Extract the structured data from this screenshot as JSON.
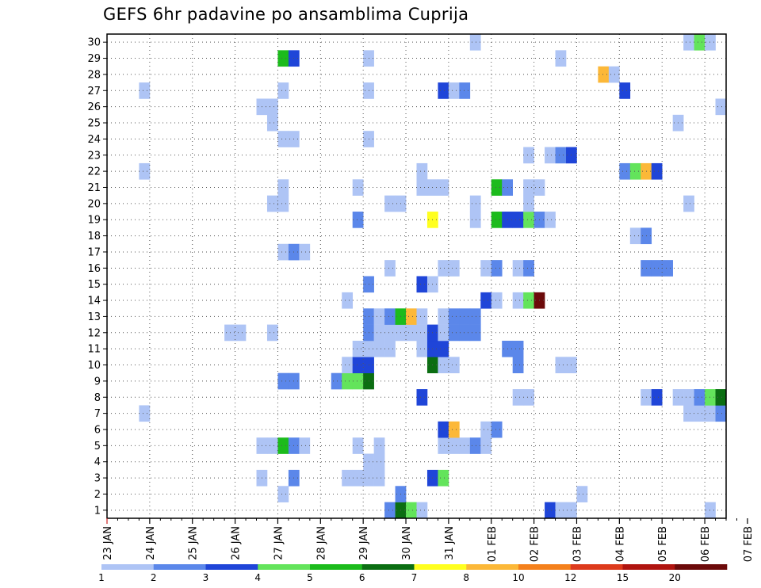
{
  "title": "GEFS 6hr padavine po ansamblima Cuprija",
  "chart_data": {
    "type": "heatmap",
    "title": "GEFS 6hr padavine po ansamblima Cuprija",
    "xlabel": "",
    "ylabel": "",
    "x_unit": "6-hour step from 23 JAN 00Z",
    "xlim": [
      0,
      58
    ],
    "ylim": [
      0.5,
      30.5
    ],
    "grid": true,
    "x_tick_labels": [
      "23 JAN",
      "24 JAN",
      "25 JAN",
      "26 JAN",
      "27 JAN",
      "28 JAN",
      "29 JAN",
      "30 JAN",
      "31 JAN",
      "01 FEB",
      "02 FEB",
      "03 FEB",
      "04 FEB",
      "05 FEB",
      "06 FEB",
      "07 FEB"
    ],
    "y_tick_labels": [
      1,
      2,
      3,
      4,
      5,
      6,
      7,
      8,
      9,
      10,
      11,
      12,
      13,
      14,
      15,
      16,
      17,
      18,
      19,
      20,
      21,
      22,
      23,
      24,
      25,
      26,
      27,
      28,
      29,
      30
    ],
    "colorbar": {
      "labels": [
        "1",
        "2",
        "3",
        "4",
        "5",
        "6",
        "7",
        "8",
        "10",
        "12",
        "15",
        "20"
      ],
      "colors": [
        "#aec4f5",
        "#5b87ea",
        "#1f45d8",
        "#63e45b",
        "#1cbb1c",
        "#0b6e12",
        "#ffff1f",
        "#fcb838",
        "#f4801c",
        "#dd3a1c",
        "#b0140f",
        "#6c0a0a"
      ]
    },
    "cells": [
      {
        "m": 1,
        "x": 27,
        "v": 2
      },
      {
        "m": 1,
        "x": 28,
        "v": 6
      },
      {
        "m": 1,
        "x": 29,
        "v": 4
      },
      {
        "m": 1,
        "x": 30,
        "v": 1
      },
      {
        "m": 1,
        "x": 42,
        "v": 3
      },
      {
        "m": 1,
        "x": 43,
        "v": 1
      },
      {
        "m": 1,
        "x": 44,
        "v": 1
      },
      {
        "m": 1,
        "x": 57,
        "v": 1
      },
      {
        "m": 2,
        "x": 17,
        "v": 1
      },
      {
        "m": 2,
        "x": 28,
        "v": 2
      },
      {
        "m": 2,
        "x": 45,
        "v": 1
      },
      {
        "m": 3,
        "x": 15,
        "v": 1
      },
      {
        "m": 3,
        "x": 18,
        "v": 2
      },
      {
        "m": 3,
        "x": 23,
        "v": 1
      },
      {
        "m": 3,
        "x": 24,
        "v": 1
      },
      {
        "m": 3,
        "x": 25,
        "v": 1
      },
      {
        "m": 3,
        "x": 26,
        "v": 1
      },
      {
        "m": 3,
        "x": 31,
        "v": 3
      },
      {
        "m": 3,
        "x": 32,
        "v": 4
      },
      {
        "m": 4,
        "x": 25,
        "v": 1
      },
      {
        "m": 4,
        "x": 26,
        "v": 1
      },
      {
        "m": 5,
        "x": 15,
        "v": 1
      },
      {
        "m": 5,
        "x": 16,
        "v": 1
      },
      {
        "m": 5,
        "x": 17,
        "v": 5
      },
      {
        "m": 5,
        "x": 18,
        "v": 2
      },
      {
        "m": 5,
        "x": 19,
        "v": 1
      },
      {
        "m": 5,
        "x": 24,
        "v": 1
      },
      {
        "m": 5,
        "x": 26,
        "v": 1
      },
      {
        "m": 5,
        "x": 32,
        "v": 1
      },
      {
        "m": 5,
        "x": 33,
        "v": 1
      },
      {
        "m": 5,
        "x": 34,
        "v": 1
      },
      {
        "m": 5,
        "x": 35,
        "v": 2
      },
      {
        "m": 5,
        "x": 36,
        "v": 1
      },
      {
        "m": 6,
        "x": 32,
        "v": 3
      },
      {
        "m": 6,
        "x": 33,
        "v": 8
      },
      {
        "m": 6,
        "x": 36,
        "v": 1
      },
      {
        "m": 6,
        "x": 37,
        "v": 2
      },
      {
        "m": 7,
        "x": 4,
        "v": 1
      },
      {
        "m": 7,
        "x": 55,
        "v": 1
      },
      {
        "m": 7,
        "x": 56,
        "v": 1
      },
      {
        "m": 7,
        "x": 57,
        "v": 1
      },
      {
        "m": 7,
        "x": 58,
        "v": 2
      },
      {
        "m": 8,
        "x": 30,
        "v": 3
      },
      {
        "m": 8,
        "x": 39,
        "v": 1
      },
      {
        "m": 8,
        "x": 40,
        "v": 1
      },
      {
        "m": 8,
        "x": 51,
        "v": 1
      },
      {
        "m": 8,
        "x": 52,
        "v": 3
      },
      {
        "m": 8,
        "x": 54,
        "v": 1
      },
      {
        "m": 8,
        "x": 55,
        "v": 1
      },
      {
        "m": 8,
        "x": 56,
        "v": 2
      },
      {
        "m": 8,
        "x": 57,
        "v": 4
      },
      {
        "m": 8,
        "x": 58,
        "v": 6
      },
      {
        "m": 9,
        "x": 17,
        "v": 2
      },
      {
        "m": 9,
        "x": 18,
        "v": 2
      },
      {
        "m": 9,
        "x": 22,
        "v": 2
      },
      {
        "m": 9,
        "x": 23,
        "v": 4
      },
      {
        "m": 9,
        "x": 24,
        "v": 4
      },
      {
        "m": 9,
        "x": 25,
        "v": 6
      },
      {
        "m": 10,
        "x": 23,
        "v": 1
      },
      {
        "m": 10,
        "x": 24,
        "v": 3
      },
      {
        "m": 10,
        "x": 25,
        "v": 3
      },
      {
        "m": 10,
        "x": 31,
        "v": 6
      },
      {
        "m": 10,
        "x": 32,
        "v": 1
      },
      {
        "m": 10,
        "x": 33,
        "v": 1
      },
      {
        "m": 10,
        "x": 39,
        "v": 2
      },
      {
        "m": 10,
        "x": 43,
        "v": 1
      },
      {
        "m": 10,
        "x": 44,
        "v": 1
      },
      {
        "m": 11,
        "x": 24,
        "v": 1
      },
      {
        "m": 11,
        "x": 25,
        "v": 1
      },
      {
        "m": 11,
        "x": 26,
        "v": 1
      },
      {
        "m": 11,
        "x": 27,
        "v": 1
      },
      {
        "m": 11,
        "x": 30,
        "v": 1
      },
      {
        "m": 11,
        "x": 31,
        "v": 3
      },
      {
        "m": 11,
        "x": 32,
        "v": 3
      },
      {
        "m": 11,
        "x": 38,
        "v": 2
      },
      {
        "m": 11,
        "x": 39,
        "v": 2
      },
      {
        "m": 12,
        "x": 12,
        "v": 1
      },
      {
        "m": 12,
        "x": 13,
        "v": 1
      },
      {
        "m": 12,
        "x": 16,
        "v": 1
      },
      {
        "m": 12,
        "x": 25,
        "v": 2
      },
      {
        "m": 12,
        "x": 26,
        "v": 1
      },
      {
        "m": 12,
        "x": 27,
        "v": 1
      },
      {
        "m": 12,
        "x": 28,
        "v": 1
      },
      {
        "m": 12,
        "x": 29,
        "v": 1
      },
      {
        "m": 12,
        "x": 30,
        "v": 1
      },
      {
        "m": 12,
        "x": 31,
        "v": 3
      },
      {
        "m": 12,
        "x": 32,
        "v": 1
      },
      {
        "m": 12,
        "x": 33,
        "v": 2
      },
      {
        "m": 12,
        "x": 34,
        "v": 2
      },
      {
        "m": 12,
        "x": 35,
        "v": 2
      },
      {
        "m": 13,
        "x": 25,
        "v": 2
      },
      {
        "m": 13,
        "x": 26,
        "v": 1
      },
      {
        "m": 13,
        "x": 27,
        "v": 2
      },
      {
        "m": 13,
        "x": 28,
        "v": 5
      },
      {
        "m": 13,
        "x": 29,
        "v": 8
      },
      {
        "m": 13,
        "x": 30,
        "v": 1
      },
      {
        "m": 13,
        "x": 32,
        "v": 1
      },
      {
        "m": 13,
        "x": 33,
        "v": 2
      },
      {
        "m": 13,
        "x": 34,
        "v": 2
      },
      {
        "m": 13,
        "x": 35,
        "v": 2
      },
      {
        "m": 14,
        "x": 23,
        "v": 1
      },
      {
        "m": 14,
        "x": 36,
        "v": 3
      },
      {
        "m": 14,
        "x": 37,
        "v": 1
      },
      {
        "m": 14,
        "x": 39,
        "v": 1
      },
      {
        "m": 14,
        "x": 40,
        "v": 4
      },
      {
        "m": 14,
        "x": 41,
        "v": 12
      },
      {
        "m": 15,
        "x": 25,
        "v": 2
      },
      {
        "m": 15,
        "x": 30,
        "v": 3
      },
      {
        "m": 15,
        "x": 31,
        "v": 1
      },
      {
        "m": 16,
        "x": 27,
        "v": 1
      },
      {
        "m": 16,
        "x": 32,
        "v": 1
      },
      {
        "m": 16,
        "x": 33,
        "v": 1
      },
      {
        "m": 16,
        "x": 36,
        "v": 1
      },
      {
        "m": 16,
        "x": 37,
        "v": 2
      },
      {
        "m": 16,
        "x": 39,
        "v": 1
      },
      {
        "m": 16,
        "x": 40,
        "v": 2
      },
      {
        "m": 16,
        "x": 51,
        "v": 2
      },
      {
        "m": 16,
        "x": 52,
        "v": 2
      },
      {
        "m": 16,
        "x": 53,
        "v": 2
      },
      {
        "m": 17,
        "x": 17,
        "v": 1
      },
      {
        "m": 17,
        "x": 18,
        "v": 2
      },
      {
        "m": 17,
        "x": 19,
        "v": 1
      },
      {
        "m": 18,
        "x": 50,
        "v": 1
      },
      {
        "m": 18,
        "x": 51,
        "v": 2
      },
      {
        "m": 19,
        "x": 24,
        "v": 2
      },
      {
        "m": 19,
        "x": 31,
        "v": 7
      },
      {
        "m": 19,
        "x": 35,
        "v": 1
      },
      {
        "m": 19,
        "x": 37,
        "v": 5
      },
      {
        "m": 19,
        "x": 38,
        "v": 3
      },
      {
        "m": 19,
        "x": 39,
        "v": 3
      },
      {
        "m": 19,
        "x": 40,
        "v": 4
      },
      {
        "m": 19,
        "x": 41,
        "v": 2
      },
      {
        "m": 19,
        "x": 42,
        "v": 1
      },
      {
        "m": 20,
        "x": 16,
        "v": 1
      },
      {
        "m": 20,
        "x": 17,
        "v": 1
      },
      {
        "m": 20,
        "x": 27,
        "v": 1
      },
      {
        "m": 20,
        "x": 28,
        "v": 1
      },
      {
        "m": 20,
        "x": 35,
        "v": 1
      },
      {
        "m": 20,
        "x": 40,
        "v": 1
      },
      {
        "m": 20,
        "x": 55,
        "v": 1
      },
      {
        "m": 21,
        "x": 17,
        "v": 1
      },
      {
        "m": 21,
        "x": 24,
        "v": 1
      },
      {
        "m": 21,
        "x": 30,
        "v": 1
      },
      {
        "m": 21,
        "x": 31,
        "v": 1
      },
      {
        "m": 21,
        "x": 32,
        "v": 1
      },
      {
        "m": 21,
        "x": 37,
        "v": 5
      },
      {
        "m": 21,
        "x": 38,
        "v": 2
      },
      {
        "m": 21,
        "x": 40,
        "v": 1
      },
      {
        "m": 21,
        "x": 41,
        "v": 1
      },
      {
        "m": 22,
        "x": 4,
        "v": 1
      },
      {
        "m": 22,
        "x": 30,
        "v": 1
      },
      {
        "m": 22,
        "x": 49,
        "v": 2
      },
      {
        "m": 22,
        "x": 50,
        "v": 4
      },
      {
        "m": 22,
        "x": 51,
        "v": 8
      },
      {
        "m": 22,
        "x": 52,
        "v": 3
      },
      {
        "m": 23,
        "x": 40,
        "v": 1
      },
      {
        "m": 23,
        "x": 42,
        "v": 1
      },
      {
        "m": 23,
        "x": 43,
        "v": 2
      },
      {
        "m": 23,
        "x": 44,
        "v": 3
      },
      {
        "m": 24,
        "x": 17,
        "v": 1
      },
      {
        "m": 24,
        "x": 18,
        "v": 1
      },
      {
        "m": 24,
        "x": 25,
        "v": 1
      },
      {
        "m": 25,
        "x": 16,
        "v": 1
      },
      {
        "m": 25,
        "x": 54,
        "v": 1
      },
      {
        "m": 26,
        "x": 15,
        "v": 1
      },
      {
        "m": 26,
        "x": 16,
        "v": 1
      },
      {
        "m": 26,
        "x": 58,
        "v": 1
      },
      {
        "m": 27,
        "x": 4,
        "v": 1
      },
      {
        "m": 27,
        "x": 17,
        "v": 1
      },
      {
        "m": 27,
        "x": 25,
        "v": 1
      },
      {
        "m": 27,
        "x": 32,
        "v": 3
      },
      {
        "m": 27,
        "x": 33,
        "v": 1
      },
      {
        "m": 27,
        "x": 34,
        "v": 2
      },
      {
        "m": 27,
        "x": 49,
        "v": 3
      },
      {
        "m": 28,
        "x": 47,
        "v": 8
      },
      {
        "m": 28,
        "x": 48,
        "v": 1
      },
      {
        "m": 29,
        "x": 17,
        "v": 5
      },
      {
        "m": 29,
        "x": 18,
        "v": 3
      },
      {
        "m": 29,
        "x": 25,
        "v": 1
      },
      {
        "m": 29,
        "x": 43,
        "v": 1
      },
      {
        "m": 30,
        "x": 35,
        "v": 1
      },
      {
        "m": 30,
        "x": 55,
        "v": 1
      },
      {
        "m": 30,
        "x": 56,
        "v": 4
      },
      {
        "m": 30,
        "x": 57,
        "v": 1
      }
    ]
  }
}
